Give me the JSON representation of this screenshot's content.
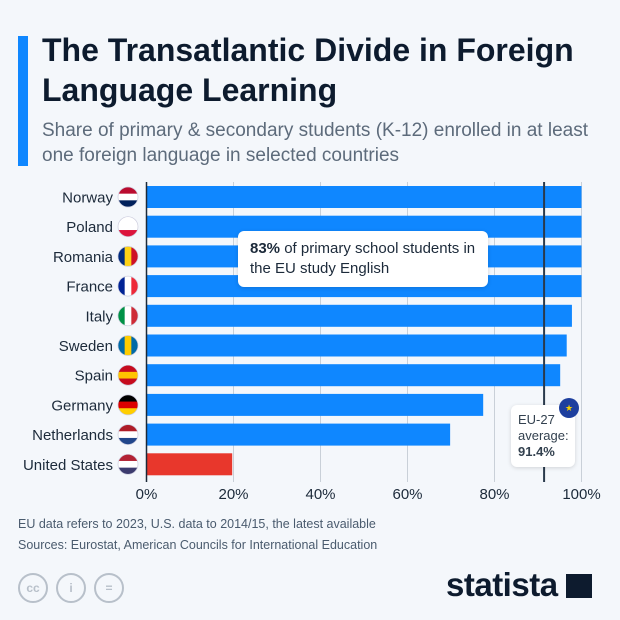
{
  "header": {
    "title": "The Transatlantic Divide in Foreign Language Learning",
    "subtitle": "Share of primary & secondary students (K-12) enrolled in at least one foreign language in selected countries"
  },
  "chart_data": {
    "type": "bar",
    "orientation": "horizontal",
    "title": "The Transatlantic Divide in Foreign Language Learning",
    "categories": [
      "Norway",
      "Poland",
      "Romania",
      "France",
      "Italy",
      "Sweden",
      "Spain",
      "Germany",
      "Netherlands",
      "United States"
    ],
    "values": [
      100,
      100,
      100,
      100,
      97.8,
      96.6,
      95.1,
      77.4,
      69.8,
      19.7
    ],
    "colors": {
      "eu": "#0f87ff",
      "us": "#e8372c"
    },
    "xlim": [
      0,
      100
    ],
    "x_ticks": [
      "0%",
      "20%",
      "40%",
      "60%",
      "80%",
      "100%"
    ],
    "grid": true,
    "reference_line": {
      "value": 91.4,
      "label_line1": "EU-27",
      "label_line2": "average:",
      "label_value": "91.4%"
    },
    "annotation": {
      "bold": "83%",
      "text": " of primary school students in the EU study English"
    }
  },
  "footer": {
    "note": "EU data refers to 2023, U.S. data to 2014/15, the latest available",
    "source": "Sources: Eurostat, American Councils for International Education",
    "logo": "statista"
  },
  "license_icons": [
    "cc",
    "i",
    "="
  ]
}
